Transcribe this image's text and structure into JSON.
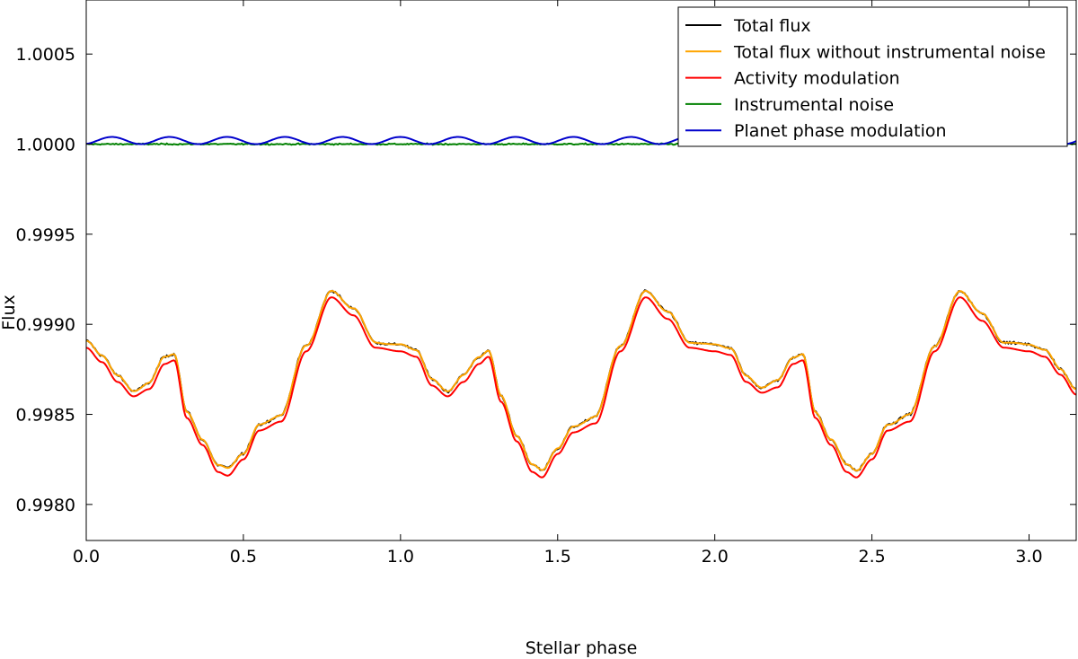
{
  "chart_data": {
    "type": "line",
    "xlabel": "Stellar phase",
    "ylabel": "Flux",
    "xlim": [
      0.0,
      3.15
    ],
    "ylim": [
      0.9978,
      1.0008
    ],
    "x_ticks": [
      0.0,
      0.5,
      1.0,
      1.5,
      2.0,
      2.5,
      3.0
    ],
    "x_tick_labels": [
      "0.0",
      "0.5",
      "1.0",
      "1.5",
      "2.0",
      "2.5",
      "3.0"
    ],
    "y_ticks": [
      0.998,
      0.9985,
      0.999,
      0.9995,
      1.0,
      1.0005
    ],
    "y_tick_labels": [
      "0.9980",
      "0.9985",
      "0.9990",
      "0.9995",
      "1.0000",
      "1.0005"
    ],
    "grid": false,
    "legend_position": "top-right",
    "series": [
      {
        "name": "Total flux",
        "color": "#000000"
      },
      {
        "name": "Total flux without instrumental noise",
        "color": "#ffa500"
      },
      {
        "name": "Activity modulation",
        "color": "#ff0000"
      },
      {
        "name": "Instrumental noise",
        "color": "#008000"
      },
      {
        "name": "Planet phase modulation",
        "color": "#0000cc"
      }
    ],
    "activity_modulation": {
      "x": [
        0.0,
        0.05,
        0.1,
        0.15,
        0.2,
        0.25,
        0.28,
        0.32,
        0.37,
        0.42,
        0.45,
        0.5,
        0.55,
        0.62,
        0.7,
        0.78,
        0.85,
        0.92,
        1.0,
        1.05,
        1.1,
        1.15,
        1.2,
        1.25,
        1.28,
        1.32,
        1.37,
        1.42,
        1.45,
        1.5,
        1.55,
        1.62,
        1.7,
        1.78,
        1.85,
        1.92,
        2.0,
        2.05,
        2.1,
        2.15,
        2.2,
        2.25,
        2.28,
        2.32,
        2.37,
        2.42,
        2.45,
        2.5,
        2.55,
        2.62,
        2.7,
        2.78,
        2.85,
        2.92,
        3.0,
        3.05,
        3.1,
        3.15
      ],
      "y": [
        0.99887,
        0.99879,
        0.99868,
        0.9986,
        0.99864,
        0.99878,
        0.9988,
        0.99848,
        0.99833,
        0.99818,
        0.99816,
        0.99825,
        0.99841,
        0.99846,
        0.99885,
        0.99915,
        0.99905,
        0.99887,
        0.99885,
        0.99882,
        0.99866,
        0.9986,
        0.99868,
        0.99878,
        0.99882,
        0.99857,
        0.99835,
        0.99818,
        0.99815,
        0.99828,
        0.9984,
        0.99845,
        0.99885,
        0.99915,
        0.99903,
        0.99887,
        0.99885,
        0.99883,
        0.99868,
        0.99862,
        0.99865,
        0.99878,
        0.9988,
        0.99848,
        0.99833,
        0.99818,
        0.99815,
        0.99825,
        0.99841,
        0.99846,
        0.99885,
        0.99915,
        0.99902,
        0.99887,
        0.99885,
        0.99882,
        0.99872,
        0.99861
      ]
    },
    "instrumental_noise_level": 1.0,
    "planet_phase_modulation": {
      "baseline": 1.0,
      "amplitude": 4e-05,
      "cycles_per_stellar_phase": 5.45
    }
  }
}
